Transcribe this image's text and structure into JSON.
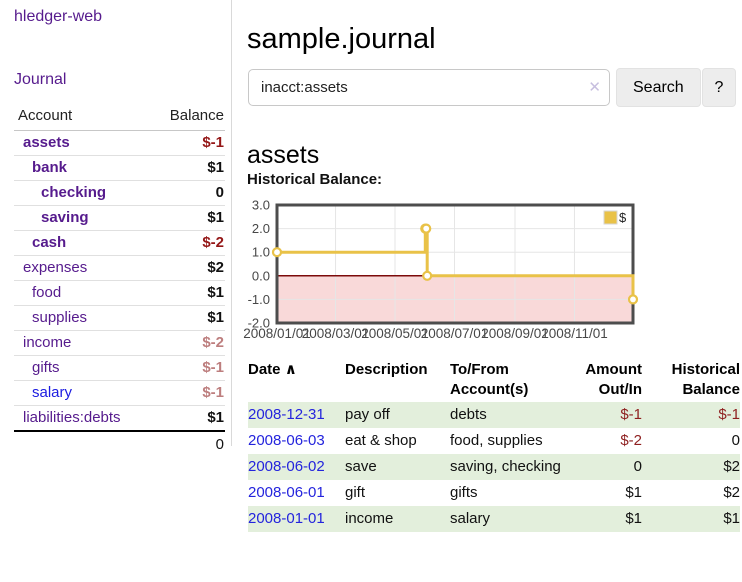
{
  "app": {
    "brand": "hledger-web",
    "nav_journal": "Journal"
  },
  "sidebar": {
    "table": {
      "headers": {
        "account": "Account",
        "balance": "Balance"
      },
      "rows": [
        {
          "name": "assets",
          "balance": "$-1",
          "depth": 0,
          "bold": true,
          "neg": "neg-strong",
          "link": "purple"
        },
        {
          "name": "bank",
          "balance": "$1",
          "depth": 1,
          "bold": true,
          "neg": "",
          "link": "purple"
        },
        {
          "name": "checking",
          "balance": "0",
          "depth": 2,
          "bold": true,
          "neg": "",
          "link": "purple"
        },
        {
          "name": "saving",
          "balance": "$1",
          "depth": 2,
          "bold": true,
          "neg": "",
          "link": "purple"
        },
        {
          "name": "cash",
          "balance": "$-2",
          "depth": 1,
          "bold": true,
          "neg": "neg-strong",
          "link": "purple"
        },
        {
          "name": "expenses",
          "balance": "$2",
          "depth": 0,
          "bold": false,
          "neg": "",
          "link": "purple"
        },
        {
          "name": "food",
          "balance": "$1",
          "depth": 1,
          "bold": false,
          "neg": "",
          "link": "purple"
        },
        {
          "name": "supplies",
          "balance": "$1",
          "depth": 1,
          "bold": false,
          "neg": "",
          "link": "purple"
        },
        {
          "name": "income",
          "balance": "$-2",
          "depth": 0,
          "bold": false,
          "neg": "neg-soft",
          "link": "purple"
        },
        {
          "name": "gifts",
          "balance": "$-1",
          "depth": 1,
          "bold": false,
          "neg": "neg-soft",
          "link": "purple"
        },
        {
          "name": "salary",
          "balance": "$-1",
          "depth": 1,
          "bold": false,
          "neg": "neg-soft",
          "link": "blue"
        },
        {
          "name": "liabilities:debts",
          "balance": "$1",
          "depth": 0,
          "bold": false,
          "neg": "",
          "link": "purple"
        }
      ],
      "total": "0"
    }
  },
  "main": {
    "title": "sample.journal",
    "search": {
      "value": "inacct:assets",
      "clear_icon": "✕",
      "button_label": "Search",
      "help_label": "?"
    },
    "account_heading": "assets",
    "chart_label": "Historical Balance:"
  },
  "chart_data": {
    "type": "line",
    "title": "Historical Balance",
    "series": [
      {
        "name": "$",
        "color": "#e9c248",
        "style": "step-after",
        "markers": true,
        "points": [
          [
            "2008/01/01",
            1
          ],
          [
            "2008/06/01",
            2
          ],
          [
            "2008/06/02",
            2
          ],
          [
            "2008/06/03",
            0
          ],
          [
            "2008/12/31",
            -1
          ]
        ]
      }
    ],
    "xlim": [
      "2008/01/01",
      "2008/12/31"
    ],
    "ylim": [
      -2,
      3
    ],
    "yticks": [
      "3.0",
      "2.0",
      "1.0",
      "0.0",
      "-1.0",
      "-2.0"
    ],
    "ytick_values": [
      3,
      2,
      1,
      0,
      -1,
      -2
    ],
    "xticks": [
      "2008/01/01",
      "2008/03/01",
      "2008/05/01",
      "2008/07/01",
      "2008/09/01",
      "2008/11/01"
    ],
    "legend": {
      "label": "$",
      "position": "top-right",
      "swatch_color": "#e9c248"
    },
    "negative_fill": "#f9d9d9",
    "zero_line_color": "#7c0a0a",
    "grid_color": "#e6e6e6",
    "border_color": "#4d4d4d",
    "tick_label_color": "#474747"
  },
  "register": {
    "headers": {
      "date": "Date",
      "sort_indicator": "∧",
      "description": "Description",
      "tofrom_line1": "To/From",
      "tofrom_line2": "Account(s)",
      "amount_line1": "Amount",
      "amount_line2": "Out/In",
      "balance_line1": "Historical",
      "balance_line2": "Balance"
    },
    "rows": [
      {
        "date": "2008-12-31",
        "description": "pay off",
        "accounts": "debts",
        "amount": "$-1",
        "balance": "$-1",
        "amount_neg": true,
        "balance_neg": true
      },
      {
        "date": "2008-06-03",
        "description": "eat & shop",
        "accounts": "food, supplies",
        "amount": "$-2",
        "balance": "0",
        "amount_neg": true,
        "balance_neg": false
      },
      {
        "date": "2008-06-02",
        "description": "save",
        "accounts": "saving, checking",
        "amount": "0",
        "balance": "$2",
        "amount_neg": false,
        "balance_neg": false
      },
      {
        "date": "2008-06-01",
        "description": "gift",
        "accounts": "gifts",
        "amount": "$1",
        "balance": "$2",
        "amount_neg": false,
        "balance_neg": false
      },
      {
        "date": "2008-01-01",
        "description": "income",
        "accounts": "salary",
        "amount": "$1",
        "balance": "$1",
        "amount_neg": false,
        "balance_neg": false
      }
    ]
  }
}
